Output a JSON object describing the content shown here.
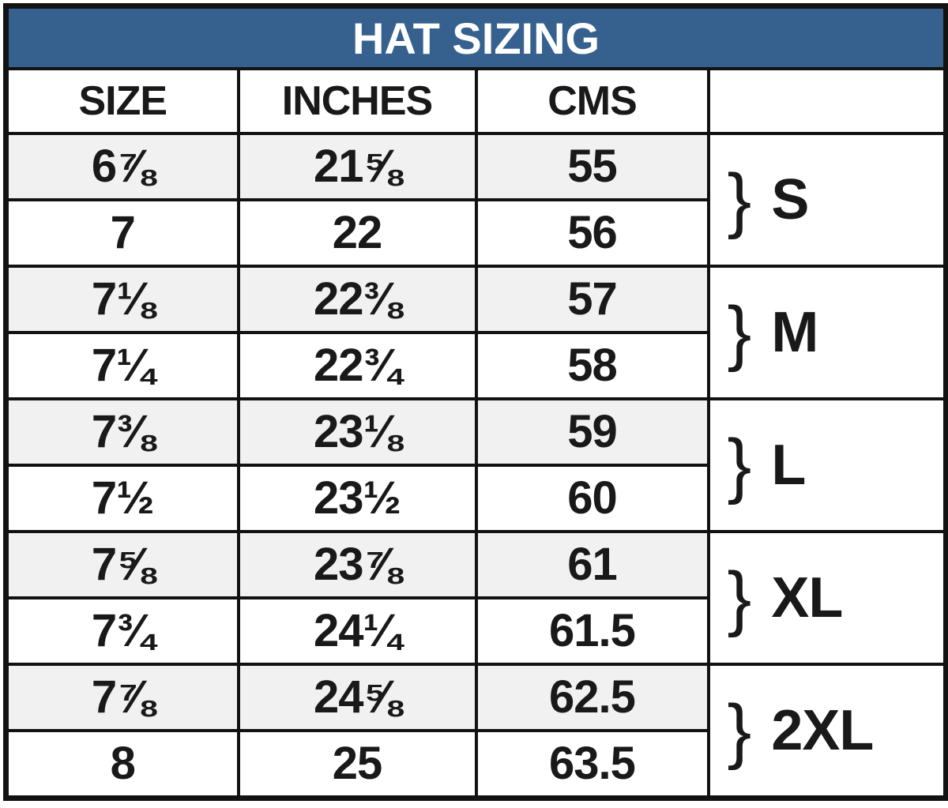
{
  "title": "HAT SIZING",
  "columns": {
    "size": "SIZE",
    "inches": "INCHES",
    "cms": "CMS",
    "group": ""
  },
  "rows": [
    {
      "size": "6⅞",
      "inches": "21⅝",
      "cms": "55"
    },
    {
      "size": "7",
      "inches": "22",
      "cms": "56"
    },
    {
      "size": "7⅛",
      "inches": "22⅜",
      "cms": "57"
    },
    {
      "size": "7¼",
      "inches": "22¾",
      "cms": "58"
    },
    {
      "size": "7⅜",
      "inches": "23⅛",
      "cms": "59"
    },
    {
      "size": "7½",
      "inches": "23½",
      "cms": "60"
    },
    {
      "size": "7⅝",
      "inches": "23⅞",
      "cms": "61"
    },
    {
      "size": "7¾",
      "inches": "24¼",
      "cms": "61.5"
    },
    {
      "size": "7⅞",
      "inches": "24⅝",
      "cms": "62.5"
    },
    {
      "size": "8",
      "inches": "25",
      "cms": "63.5"
    }
  ],
  "groups": [
    {
      "brace": "}",
      "label": "S"
    },
    {
      "brace": "}",
      "label": "M"
    },
    {
      "brace": "}",
      "label": "L"
    },
    {
      "brace": "}",
      "label": "XL"
    },
    {
      "brace": "}",
      "label": "2XL"
    }
  ],
  "colors": {
    "title_bg": "#36618f",
    "title_text": "#ffffff",
    "border": "#121212",
    "row_alt_bg": "#f1f1f1",
    "row_bg": "#ffffff",
    "body_text": "#191919"
  },
  "chart_data": {
    "type": "table",
    "title": "HAT SIZING",
    "columns": [
      "SIZE",
      "INCHES",
      "CMS",
      ""
    ],
    "rows": [
      [
        "6⅞",
        "21⅝",
        "55"
      ],
      [
        "7",
        "22",
        "56"
      ],
      [
        "7⅛",
        "22⅜",
        "57"
      ],
      [
        "7¼",
        "22¾",
        "58"
      ],
      [
        "7⅜",
        "23⅛",
        "59"
      ],
      [
        "7½",
        "23½",
        "60"
      ],
      [
        "7⅝",
        "23⅞",
        "61"
      ],
      [
        "7¾",
        "24¼",
        "61.5"
      ],
      [
        "7⅞",
        "24⅝",
        "62.5"
      ],
      [
        "8",
        "25",
        "63.5"
      ]
    ],
    "row_groups": [
      {
        "label": "S",
        "rows": [
          0,
          1
        ]
      },
      {
        "label": "M",
        "rows": [
          2,
          3
        ]
      },
      {
        "label": "L",
        "rows": [
          4,
          5
        ]
      },
      {
        "label": "XL",
        "rows": [
          6,
          7
        ]
      },
      {
        "label": "2XL",
        "rows": [
          8,
          9
        ]
      }
    ]
  }
}
